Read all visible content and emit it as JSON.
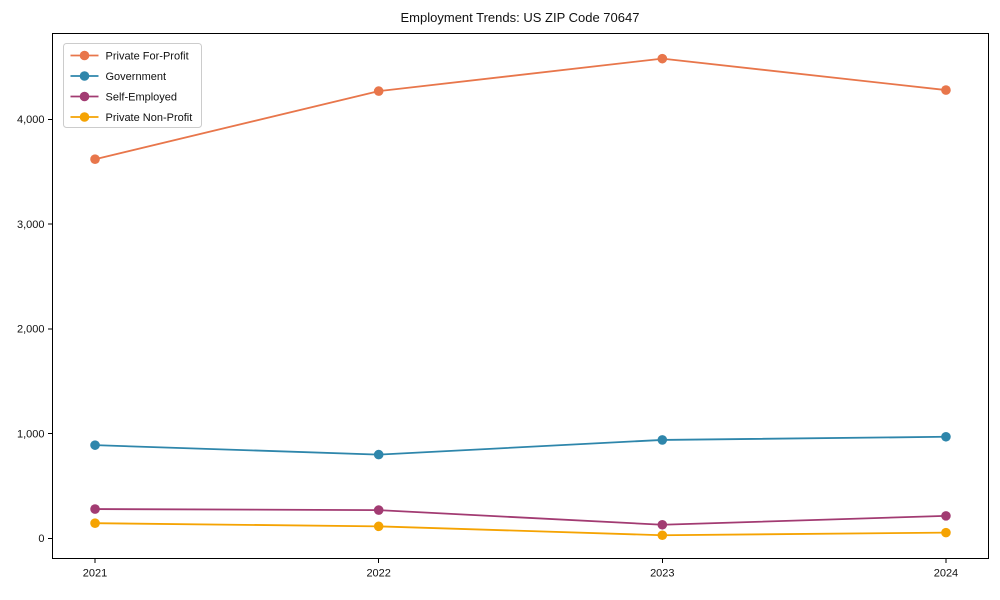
{
  "title": "Employment Trends: US ZIP Code 70647",
  "chart_data": {
    "type": "line",
    "title": "Employment Trends: US ZIP Code 70647",
    "xlabel": "",
    "ylabel": "",
    "x": [
      2021,
      2022,
      2023,
      2024
    ],
    "xtick_labels": [
      "2021",
      "2022",
      "2023",
      "2024"
    ],
    "yticks": [
      0,
      1000,
      2000,
      3000,
      4000
    ],
    "ytick_labels": [
      "0",
      "1,000",
      "2,000",
      "3,000",
      "4,000"
    ],
    "xlim": [
      2020.85,
      2024.15
    ],
    "ylim": [
      -192,
      4820
    ],
    "grid": false,
    "legend_position": "upper left",
    "marker": "circle",
    "series": [
      {
        "name": "Private For-Profit",
        "color": "#E8764B",
        "values": [
          3620,
          4270,
          4580,
          4280
        ]
      },
      {
        "name": "Government",
        "color": "#2E86AB",
        "values": [
          890,
          800,
          940,
          970
        ]
      },
      {
        "name": "Self-Employed",
        "color": "#A23B72",
        "values": [
          280,
          270,
          130,
          215
        ]
      },
      {
        "name": "Private Non-Profit",
        "color": "#F5A302",
        "values": [
          145,
          115,
          30,
          55
        ]
      }
    ],
    "colors": {
      "spine": "#000000",
      "background": "#ffffff",
      "legend_border": "#cccccc",
      "legend_background": "#ffffff"
    }
  }
}
